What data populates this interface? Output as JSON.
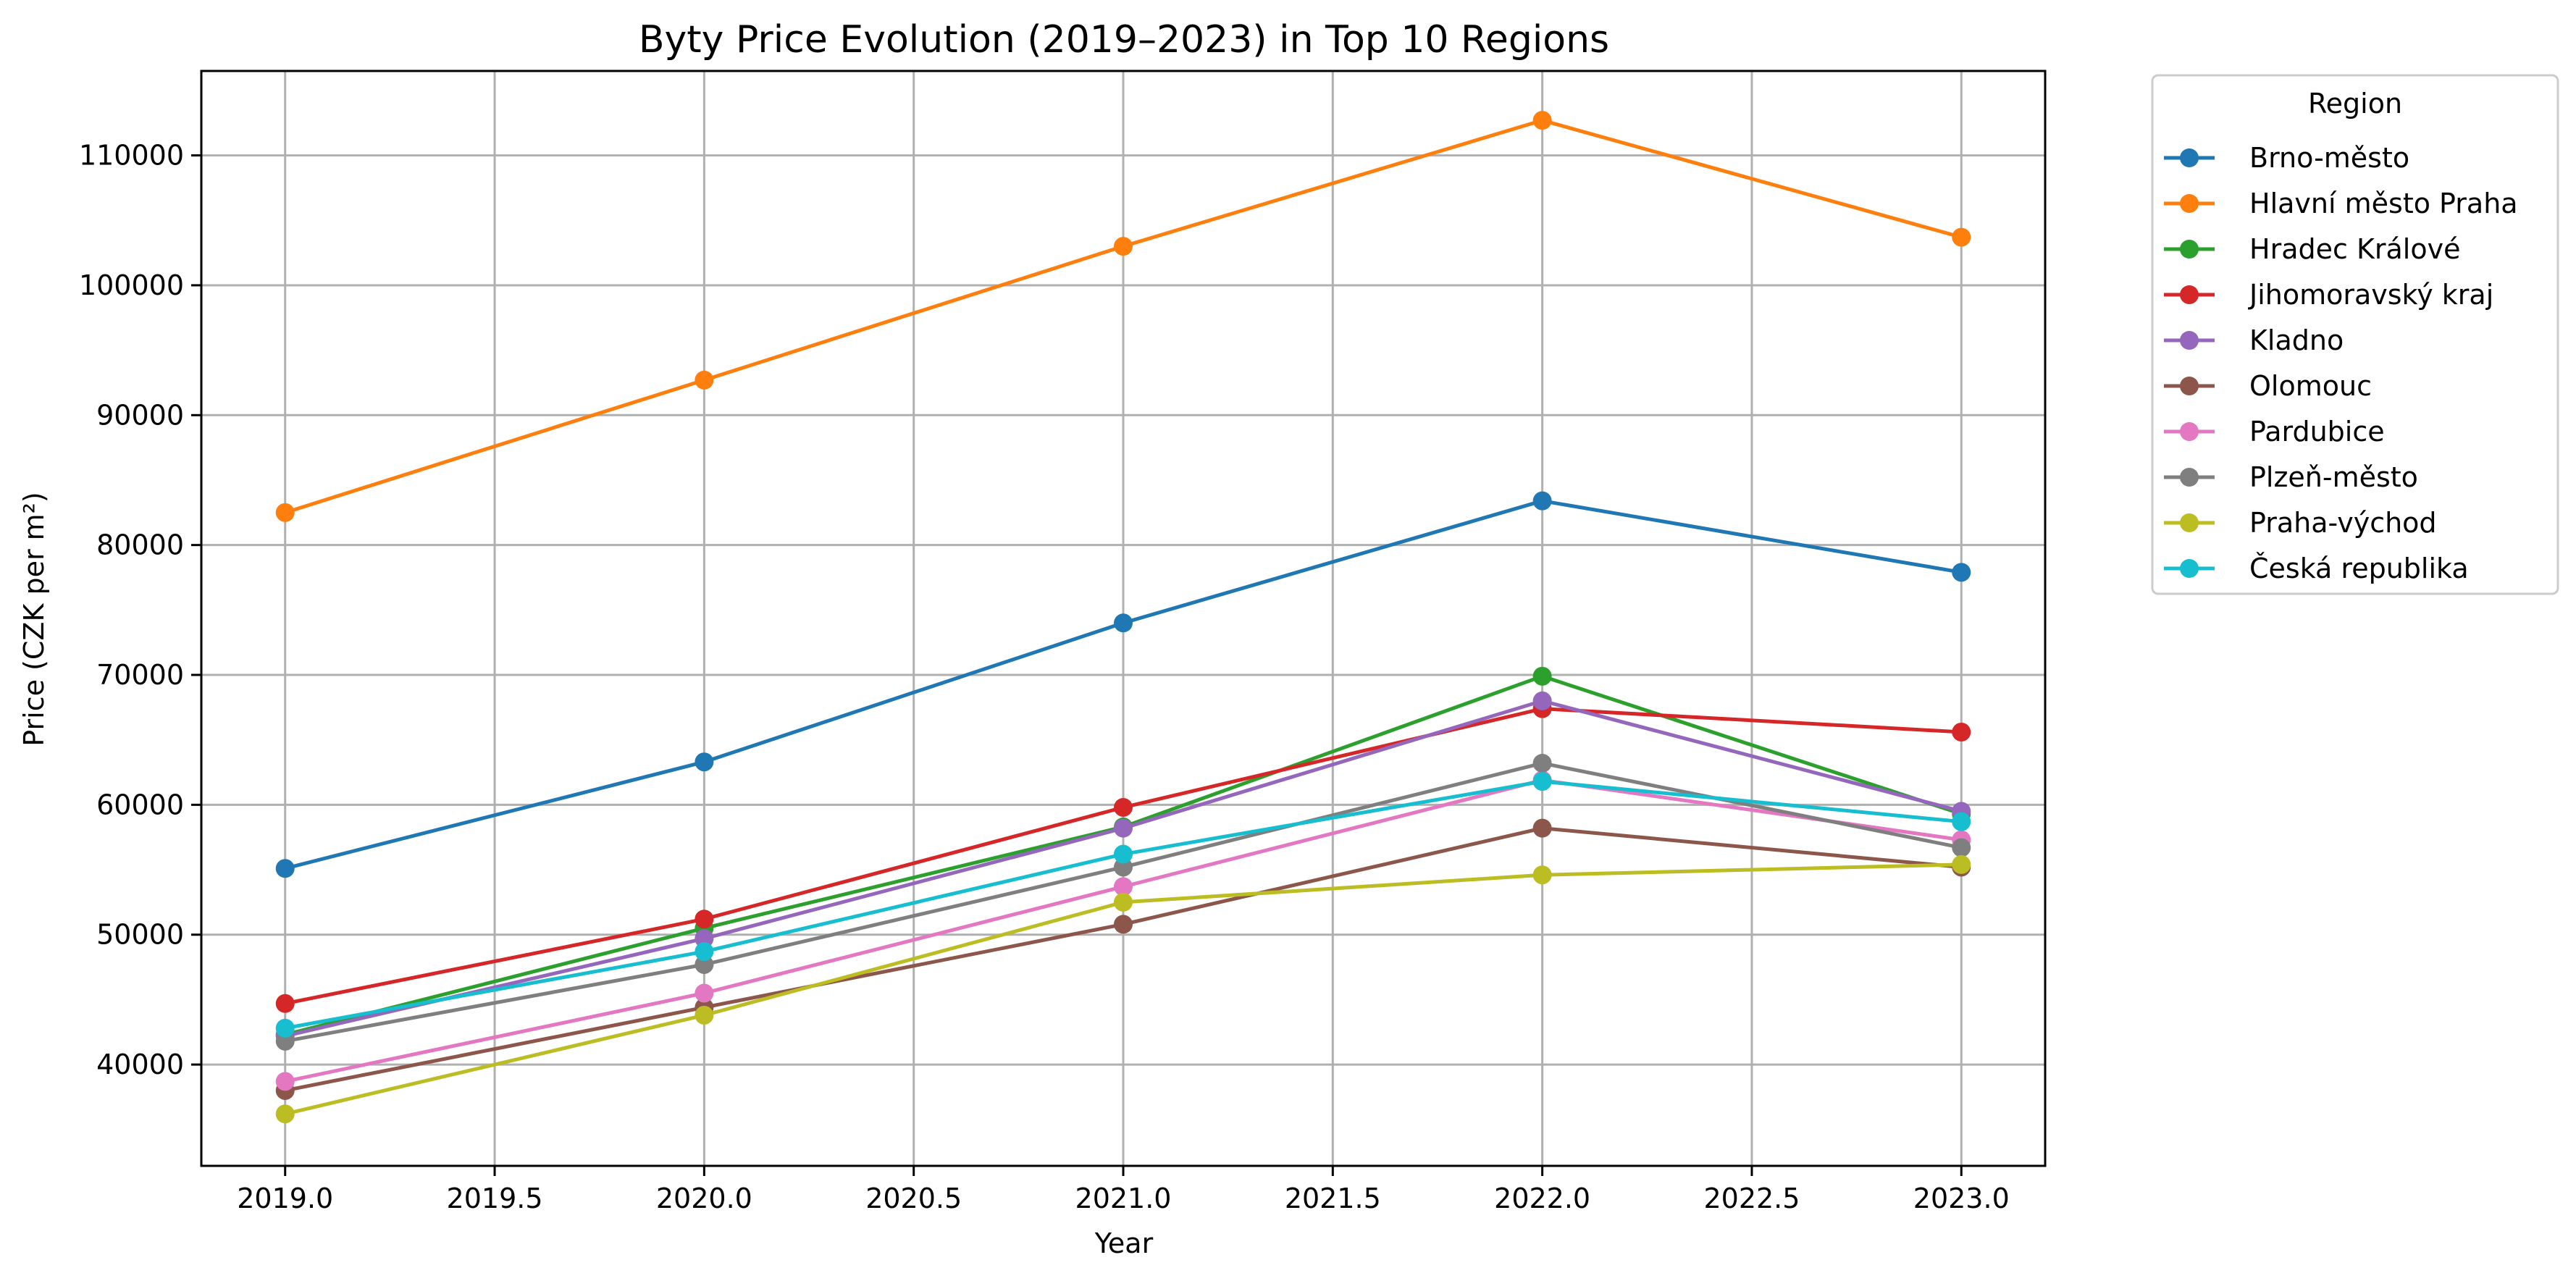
{
  "chart_data": {
    "type": "line",
    "title": "Byty Price Evolution (2019–2023) in Top 10 Regions",
    "xlabel": "Year",
    "ylabel": "Price (CZK per m²)",
    "x": [
      2019,
      2020,
      2021,
      2022,
      2023
    ],
    "xlim": [
      2018.8,
      2023.2
    ],
    "ylim": [
      32200,
      116500
    ],
    "x_ticks": [
      2019.0,
      2019.5,
      2020.0,
      2020.5,
      2021.0,
      2021.5,
      2022.0,
      2022.5,
      2023.0
    ],
    "x_tick_labels": [
      "2019.0",
      "2019.5",
      "2020.0",
      "2020.5",
      "2021.0",
      "2021.5",
      "2022.0",
      "2022.5",
      "2023.0"
    ],
    "y_ticks": [
      40000,
      50000,
      60000,
      70000,
      80000,
      90000,
      100000,
      110000
    ],
    "y_tick_labels": [
      "40000",
      "50000",
      "60000",
      "70000",
      "80000",
      "90000",
      "100000",
      "110000"
    ],
    "grid": true,
    "legend": {
      "title": "Region",
      "placement": "outside-top-right"
    },
    "series": [
      {
        "name": "Brno-město",
        "color": "#1f77b4",
        "values": [
          55100,
          63300,
          74000,
          83400,
          77900
        ]
      },
      {
        "name": "Hlavní město Praha",
        "color": "#ff7f0e",
        "values": [
          82500,
          92700,
          103000,
          112700,
          103700
        ]
      },
      {
        "name": "Hradec Králové",
        "color": "#2ca02c",
        "values": [
          42300,
          50500,
          58300,
          69900,
          59300
        ]
      },
      {
        "name": "Jihomoravský kraj",
        "color": "#d62728",
        "values": [
          44700,
          51200,
          59800,
          67400,
          65600
        ]
      },
      {
        "name": "Kladno",
        "color": "#9467bd",
        "values": [
          42200,
          49700,
          58200,
          68000,
          59500
        ]
      },
      {
        "name": "Olomouc",
        "color": "#8c564b",
        "values": [
          38000,
          44400,
          50800,
          58200,
          55200
        ]
      },
      {
        "name": "Pardubice",
        "color": "#e377c2",
        "values": [
          38700,
          45500,
          53700,
          61900,
          57300
        ]
      },
      {
        "name": "Plzeň-město",
        "color": "#7f7f7f",
        "values": [
          41800,
          47700,
          55200,
          63200,
          56700
        ]
      },
      {
        "name": "Praha-východ",
        "color": "#bcbd22",
        "values": [
          36200,
          43800,
          52500,
          54600,
          55400
        ]
      },
      {
        "name": "Česká republika",
        "color": "#17becf",
        "values": [
          42800,
          48700,
          56200,
          61800,
          58700
        ]
      }
    ]
  }
}
